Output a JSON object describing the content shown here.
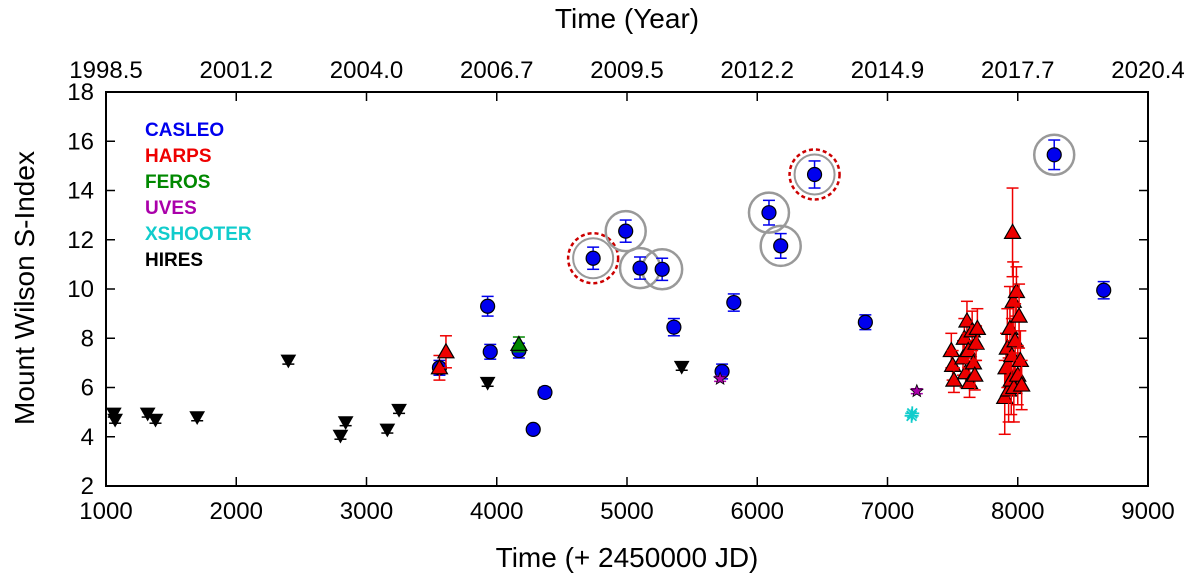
{
  "chart_data": {
    "type": "scatter",
    "title": "",
    "xlabel": "Time (+ 2450000 JD)",
    "ylabel": "Mount Wilson S-Index",
    "x2label": "Time (Year)",
    "xlim": [
      1000,
      9000
    ],
    "ylim": [
      2,
      18
    ],
    "xticks": [
      1000,
      2000,
      3000,
      4000,
      5000,
      6000,
      7000,
      8000,
      9000
    ],
    "yticks": [
      2,
      4,
      6,
      8,
      10,
      12,
      14,
      16,
      18
    ],
    "x2ticks": [
      {
        "x": 1000,
        "label": "1998.5"
      },
      {
        "x": 2000,
        "label": "2001.2"
      },
      {
        "x": 3000,
        "label": "2004.0"
      },
      {
        "x": 4000,
        "label": "2006.7"
      },
      {
        "x": 5000,
        "label": "2009.5"
      },
      {
        "x": 6000,
        "label": "2012.2"
      },
      {
        "x": 7000,
        "label": "2014.9"
      },
      {
        "x": 8000,
        "label": "2017.7"
      },
      {
        "x": 9000,
        "label": "2020.4"
      }
    ],
    "grid": false,
    "legend": "top-left",
    "series": [
      {
        "name": "CASLEO",
        "color": "#0000ee",
        "marker": "circle",
        "points": [
          {
            "x": 3560,
            "y": 6.8,
            "err": 0.3
          },
          {
            "x": 3930,
            "y": 9.3,
            "err": 0.4
          },
          {
            "x": 3950,
            "y": 7.45,
            "err": 0.3
          },
          {
            "x": 4170,
            "y": 7.5,
            "err": 0.3
          },
          {
            "x": 4280,
            "y": 4.3,
            "err": 0.15
          },
          {
            "x": 4370,
            "y": 5.8,
            "err": 0.2
          },
          {
            "x": 4740,
            "y": 11.25,
            "err": 0.45
          },
          {
            "x": 4990,
            "y": 12.35,
            "err": 0.45
          },
          {
            "x": 5100,
            "y": 10.85,
            "err": 0.45
          },
          {
            "x": 5270,
            "y": 10.8,
            "err": 0.45
          },
          {
            "x": 5360,
            "y": 8.45,
            "err": 0.35
          },
          {
            "x": 5730,
            "y": 6.65,
            "err": 0.3
          },
          {
            "x": 5820,
            "y": 9.45,
            "err": 0.35
          },
          {
            "x": 6090,
            "y": 13.1,
            "err": 0.5
          },
          {
            "x": 6180,
            "y": 11.75,
            "err": 0.5
          },
          {
            "x": 6440,
            "y": 14.65,
            "err": 0.55
          },
          {
            "x": 6830,
            "y": 8.65,
            "err": 0.3
          },
          {
            "x": 8280,
            "y": 15.45,
            "err": 0.6
          },
          {
            "x": 8660,
            "y": 9.95,
            "err": 0.35
          }
        ]
      },
      {
        "name": "HARPS",
        "color": "#ee0000",
        "marker": "triangle-up",
        "points": [
          {
            "x": 3560,
            "y": 6.8,
            "err": 0.5
          },
          {
            "x": 3610,
            "y": 7.45,
            "err": 0.65
          },
          {
            "x": 7490,
            "y": 7.5,
            "err": 0.7
          },
          {
            "x": 7500,
            "y": 6.9,
            "err": 0.6
          },
          {
            "x": 7510,
            "y": 6.3,
            "err": 0.5
          },
          {
            "x": 7580,
            "y": 7.2,
            "err": 0.7
          },
          {
            "x": 7590,
            "y": 8.0,
            "err": 0.8
          },
          {
            "x": 7600,
            "y": 6.6,
            "err": 0.6
          },
          {
            "x": 7610,
            "y": 8.7,
            "err": 0.8
          },
          {
            "x": 7620,
            "y": 7.5,
            "err": 0.7
          },
          {
            "x": 7630,
            "y": 6.2,
            "err": 0.6
          },
          {
            "x": 7650,
            "y": 8.3,
            "err": 0.8
          },
          {
            "x": 7660,
            "y": 7.0,
            "err": 0.7
          },
          {
            "x": 7670,
            "y": 6.5,
            "err": 0.6
          },
          {
            "x": 7680,
            "y": 7.8,
            "err": 0.7
          },
          {
            "x": 7690,
            "y": 8.4,
            "err": 0.8
          },
          {
            "x": 7900,
            "y": 5.6,
            "err": 1.5
          },
          {
            "x": 7910,
            "y": 6.8,
            "err": 1.4
          },
          {
            "x": 7920,
            "y": 7.6,
            "err": 1.6
          },
          {
            "x": 7930,
            "y": 5.9,
            "err": 1.3
          },
          {
            "x": 7940,
            "y": 8.4,
            "err": 1.7
          },
          {
            "x": 7950,
            "y": 6.3,
            "err": 1.4
          },
          {
            "x": 7955,
            "y": 7.3,
            "err": 1.5
          },
          {
            "x": 7960,
            "y": 12.3,
            "err": 1.8
          },
          {
            "x": 7965,
            "y": 9.5,
            "err": 1.6
          },
          {
            "x": 7970,
            "y": 6.0,
            "err": 1.4
          },
          {
            "x": 7980,
            "y": 7.9,
            "err": 1.5
          },
          {
            "x": 7990,
            "y": 9.9,
            "err": 1.0
          },
          {
            "x": 8000,
            "y": 6.5,
            "err": 1.2
          },
          {
            "x": 8010,
            "y": 8.9,
            "err": 1.3
          },
          {
            "x": 8020,
            "y": 7.1,
            "err": 1.2
          },
          {
            "x": 8030,
            "y": 6.1,
            "err": 1.0
          }
        ]
      },
      {
        "name": "FEROS",
        "color": "#008800",
        "marker": "triangle-up",
        "points": [
          {
            "x": 4170,
            "y": 7.75,
            "err": 0.3
          }
        ]
      },
      {
        "name": "UVES",
        "color": "#aa00aa",
        "marker": "star",
        "points": [
          {
            "x": 5715,
            "y": 6.35,
            "err": 0.1
          },
          {
            "x": 7225,
            "y": 5.85,
            "err": 0.1
          }
        ]
      },
      {
        "name": "XSHOOTER",
        "color": "#11cccc",
        "marker": "asterisk",
        "points": [
          {
            "x": 7185,
            "y": 4.85,
            "err": 0
          },
          {
            "x": 7190,
            "y": 4.95,
            "err": 0
          }
        ]
      },
      {
        "name": "HIRES",
        "color": "#000000",
        "marker": "triangle-down",
        "points": [
          {
            "x": 1060,
            "y": 4.95,
            "err": 0.15
          },
          {
            "x": 1070,
            "y": 4.7,
            "err": 0.15
          },
          {
            "x": 1320,
            "y": 4.95,
            "err": 0.15
          },
          {
            "x": 1380,
            "y": 4.7,
            "err": 0.15
          },
          {
            "x": 1700,
            "y": 4.8,
            "err": 0.15
          },
          {
            "x": 2400,
            "y": 7.1,
            "err": 0.15
          },
          {
            "x": 2800,
            "y": 4.05,
            "err": 0.15
          },
          {
            "x": 2840,
            "y": 4.6,
            "err": 0.15
          },
          {
            "x": 3160,
            "y": 4.3,
            "err": 0.15
          },
          {
            "x": 3250,
            "y": 5.1,
            "err": 0.15
          },
          {
            "x": 3930,
            "y": 6.2,
            "err": 0.15
          },
          {
            "x": 5420,
            "y": 6.85,
            "err": 0.15
          }
        ]
      }
    ],
    "highlights": [
      {
        "x": 4740,
        "y": 11.25,
        "style": "dashed-red"
      },
      {
        "x": 4990,
        "y": 12.35,
        "style": "gray"
      },
      {
        "x": 5100,
        "y": 10.85,
        "style": "gray"
      },
      {
        "x": 5270,
        "y": 10.8,
        "style": "gray"
      },
      {
        "x": 6090,
        "y": 13.1,
        "style": "gray"
      },
      {
        "x": 6180,
        "y": 11.75,
        "style": "gray"
      },
      {
        "x": 6440,
        "y": 14.65,
        "style": "dashed-red"
      },
      {
        "x": 8280,
        "y": 15.45,
        "style": "gray"
      }
    ]
  }
}
